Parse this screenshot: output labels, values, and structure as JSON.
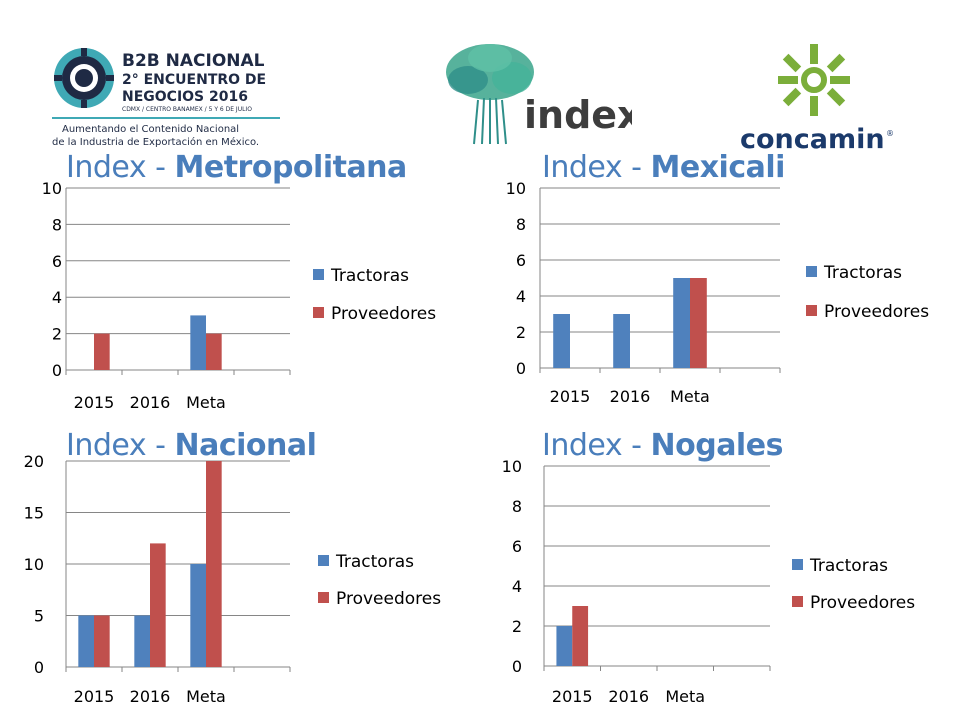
{
  "logos": {
    "b2b": {
      "line1": "B2B NACIONAL",
      "line2": "2° ENCUENTRO DE",
      "line3": "NEGOCIOS 2016",
      "line4": "CDMX / CENTRO BANAMEX / 5 Y 6 DE JULIO",
      "tag1": "Aumentando el Contenido Nacional",
      "tag2": "de la Industria de Exportación en México."
    },
    "index": {
      "text": "index"
    },
    "concamin": {
      "text": "concamin",
      "mark": "®"
    }
  },
  "colors": {
    "title": "#4a7ebb",
    "tractoras": "#4f81bd",
    "proveedores": "#c0504d",
    "grid": "#868686",
    "b2b_navy": "#1f2a44",
    "b2b_teal": "#3fa9b5",
    "index_green": "#3aa58b",
    "concamin_green": "#7bae3a",
    "concamin_navy": "#1b3a6b"
  },
  "chart_data": [
    {
      "type": "bar",
      "title_prefix": "Index - ",
      "title_bold": "Metropolitana",
      "categories": [
        "2015",
        "2016",
        "Meta"
      ],
      "series": [
        {
          "name": "Tractoras",
          "values": [
            0,
            0,
            3
          ]
        },
        {
          "name": "Proveedores",
          "values": [
            2,
            0,
            2
          ]
        }
      ],
      "y_ticks": [
        0,
        2,
        4,
        6,
        8,
        10
      ],
      "ylim": [
        0,
        10
      ],
      "grid": true,
      "legend": "right"
    },
    {
      "type": "bar",
      "title_prefix": "Index - ",
      "title_bold": "Mexicali",
      "categories": [
        "2015",
        "2016",
        "Meta"
      ],
      "series": [
        {
          "name": "Tractoras",
          "values": [
            3,
            3,
            5
          ]
        },
        {
          "name": "Proveedores",
          "values": [
            0,
            0,
            5
          ]
        }
      ],
      "y_ticks": [
        0,
        2,
        4,
        6,
        8,
        10
      ],
      "ylim": [
        0,
        10
      ],
      "grid": true,
      "legend": "right"
    },
    {
      "type": "bar",
      "title_prefix": "Index - ",
      "title_bold": "Nacional",
      "categories": [
        "2015",
        "2016",
        "Meta"
      ],
      "series": [
        {
          "name": "Tractoras",
          "values": [
            5,
            5,
            10
          ]
        },
        {
          "name": "Proveedores",
          "values": [
            5,
            12,
            20
          ]
        }
      ],
      "y_ticks": [
        0,
        5,
        10,
        15,
        20
      ],
      "ylim": [
        0,
        20
      ],
      "grid": true,
      "legend": "right"
    },
    {
      "type": "bar",
      "title_prefix": "Index - ",
      "title_bold": "Nogales",
      "categories": [
        "2015",
        "2016",
        "Meta"
      ],
      "series": [
        {
          "name": "Tractoras",
          "values": [
            2,
            0,
            0
          ]
        },
        {
          "name": "Proveedores",
          "values": [
            3,
            0,
            0
          ]
        }
      ],
      "y_ticks": [
        0,
        2,
        4,
        6,
        8,
        10
      ],
      "ylim": [
        0,
        10
      ],
      "grid": true,
      "legend": "right"
    }
  ]
}
